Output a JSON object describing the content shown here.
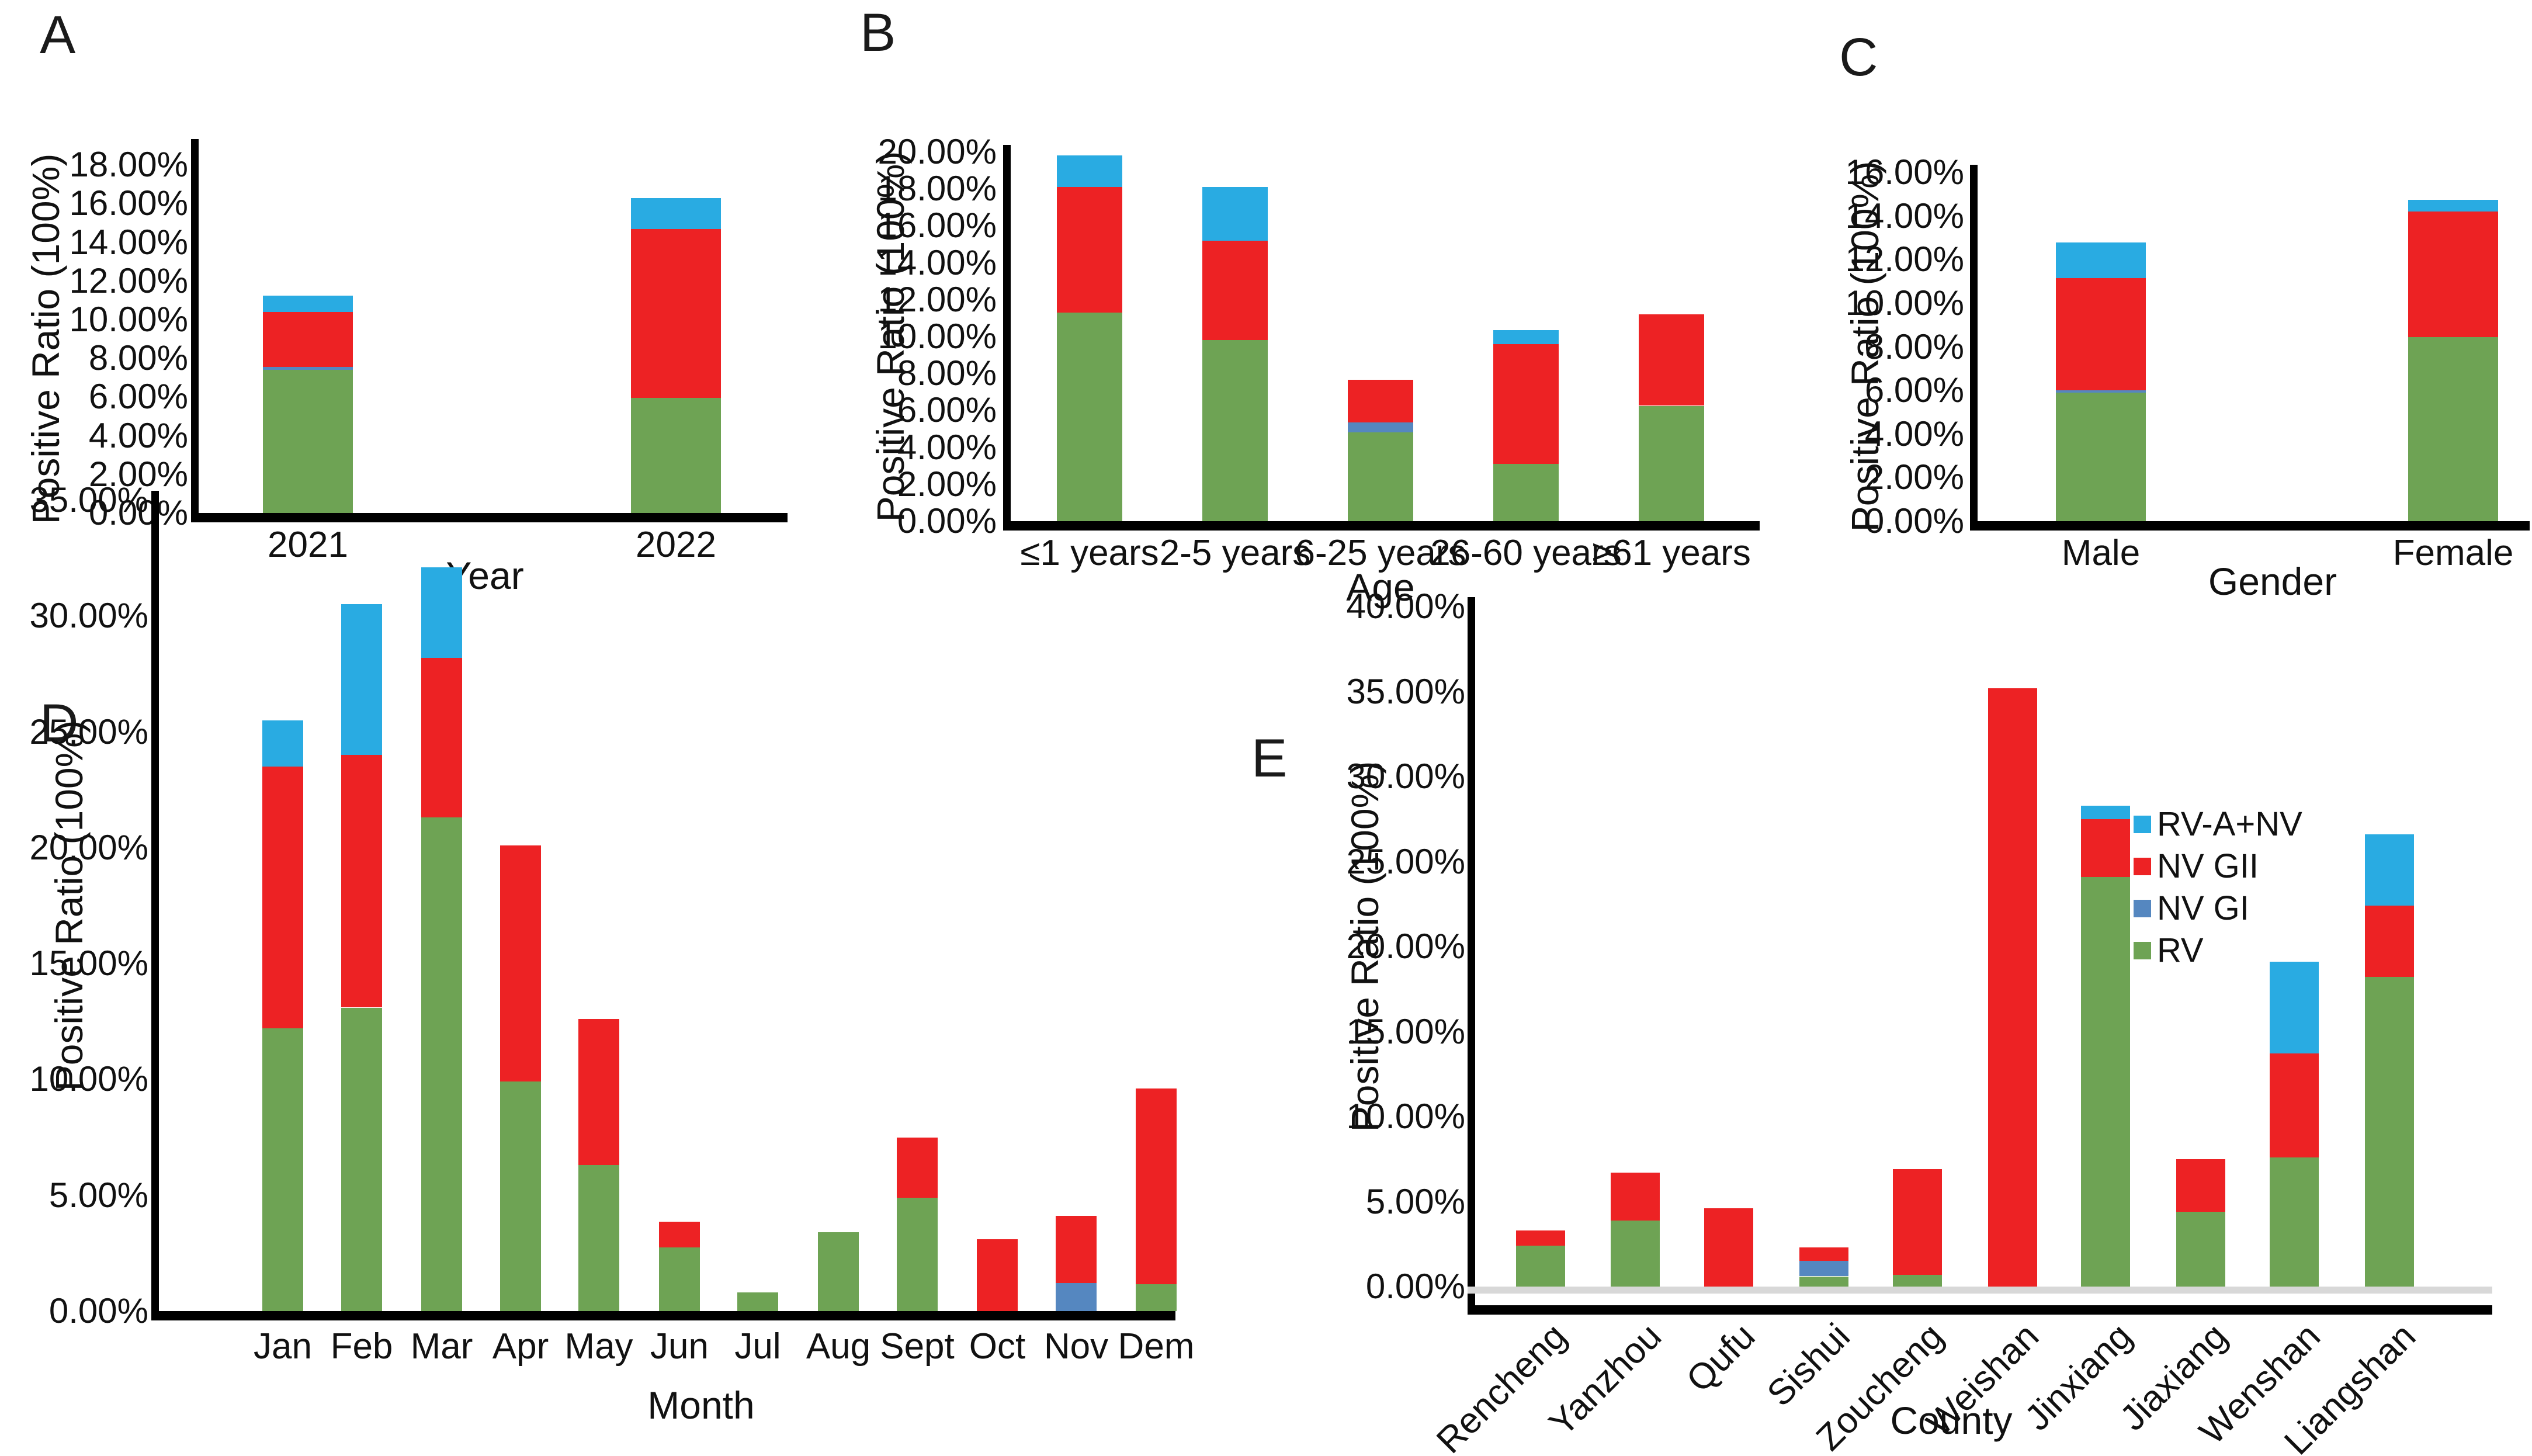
{
  "colors": {
    "RV": "#6EA354",
    "NV GI": "#5587C0",
    "NV GII": "#ED2224",
    "RV-A+NV": "#29ABE2",
    "axis": "#000000",
    "baseline_strip": "#D8D8D8"
  },
  "legend": {
    "entries": [
      {
        "label": "RV-A+NV",
        "color": "#29ABE2"
      },
      {
        "label": "NV GII",
        "color": "#ED2224"
      },
      {
        "label": "NV GI",
        "color": "#5587C0"
      },
      {
        "label": "RV",
        "color": "#6EA354"
      }
    ]
  },
  "chart_data": [
    {
      "panel": "A",
      "type": "bar",
      "stacked": true,
      "xlabel": "Year",
      "ylabel": "Positive Ratio (100%)",
      "categories": [
        "2021",
        "2022"
      ],
      "series": [
        {
          "name": "RV",
          "values": [
            7.4,
            5.95
          ]
        },
        {
          "name": "NV GI",
          "values": [
            0.15,
            0
          ]
        },
        {
          "name": "NV GII",
          "values": [
            2.85,
            8.75
          ]
        },
        {
          "name": "RV-A+NV",
          "values": [
            0.85,
            1.6
          ]
        }
      ],
      "ylim": [
        0,
        18
      ],
      "ytick_step": 2,
      "ytick_format": "percent_2dp",
      "grid": false,
      "legend_position": "none"
    },
    {
      "panel": "B",
      "type": "bar",
      "stacked": true,
      "xlabel": "Age",
      "ylabel": "Positive Ratio (100%)",
      "categories": [
        "≤1 years",
        "2-5 years",
        "6-25 years",
        "26-60 years",
        "≥61 years"
      ],
      "series": [
        {
          "name": "RV",
          "values": [
            11.3,
            9.8,
            4.8,
            3.1,
            6.25
          ]
        },
        {
          "name": "NV GI",
          "values": [
            0,
            0,
            0.55,
            0,
            0
          ]
        },
        {
          "name": "NV GII",
          "values": [
            6.8,
            5.4,
            2.3,
            6.5,
            4.95
          ]
        },
        {
          "name": "RV-A+NV",
          "values": [
            1.7,
            2.9,
            0,
            0.75,
            0
          ]
        }
      ],
      "ylim": [
        0,
        20
      ],
      "ytick_step": 2,
      "ytick_format": "percent_2dp",
      "grid": false,
      "legend_position": "none"
    },
    {
      "panel": "C",
      "type": "bar",
      "stacked": true,
      "xlabel": "Gender",
      "ylabel": "Positive Ratio (100%)",
      "categories": [
        "Male",
        "Female"
      ],
      "series": [
        {
          "name": "RV",
          "values": [
            5.9,
            8.45
          ]
        },
        {
          "name": "NV GI",
          "values": [
            0.1,
            0
          ]
        },
        {
          "name": "NV GII",
          "values": [
            5.15,
            5.75
          ]
        },
        {
          "name": "RV-A+NV",
          "values": [
            1.65,
            0.55
          ]
        }
      ],
      "ylim": [
        0,
        16
      ],
      "ytick_step": 2,
      "ytick_format": "percent_2dp",
      "grid": false,
      "legend_position": "none"
    },
    {
      "panel": "D",
      "type": "bar",
      "stacked": true,
      "xlabel": "Month",
      "ylabel": "Positive Ratio (100%)",
      "categories": [
        "Jan",
        "Feb",
        "Mar",
        "Apr",
        "May",
        "Jun",
        "Jul",
        "Aug",
        "Sept",
        "Oct",
        "Nov",
        "Dem"
      ],
      "series": [
        {
          "name": "RV",
          "values": [
            12.2,
            13.1,
            21.3,
            9.9,
            6.3,
            2.75,
            0.8,
            3.4,
            4.9,
            0,
            0,
            1.15
          ]
        },
        {
          "name": "NV GI",
          "values": [
            0,
            0,
            0,
            0,
            0,
            0,
            0,
            0,
            0,
            0,
            1.2,
            0
          ]
        },
        {
          "name": "NV GII",
          "values": [
            11.3,
            10.9,
            6.9,
            10.2,
            6.3,
            1.1,
            0,
            0,
            2.6,
            3.1,
            2.9,
            8.45
          ]
        },
        {
          "name": "RV-A+NV",
          "values": [
            2.0,
            6.5,
            3.9,
            0,
            0,
            0,
            0,
            0,
            0,
            0,
            0,
            0
          ]
        }
      ],
      "ylim": [
        0,
        35
      ],
      "ytick_step": 5,
      "ytick_format": "percent_2dp",
      "grid": false,
      "legend_position": "none"
    },
    {
      "panel": "E",
      "type": "bar",
      "stacked": true,
      "xlabel": "County",
      "ylabel": "Positive Ratio (100%)",
      "categories": [
        "Rencheng",
        "Yanzhou",
        "Qufu",
        "Sishui",
        "Zoucheng",
        "Weishan",
        "Jinxiang",
        "Jiaxiang",
        "Wenshan",
        "Liangshan"
      ],
      "series": [
        {
          "name": "RV",
          "values": [
            2.4,
            3.9,
            0,
            0.6,
            0.7,
            0,
            24.1,
            4.4,
            7.6,
            18.2
          ]
        },
        {
          "name": "NV GI",
          "values": [
            0,
            0,
            0,
            0.9,
            0,
            0,
            0,
            0,
            0,
            0
          ]
        },
        {
          "name": "NV GII",
          "values": [
            0.9,
            2.8,
            4.6,
            0.8,
            6.2,
            35.2,
            3.4,
            3.1,
            6.1,
            4.2
          ]
        },
        {
          "name": "RV-A+NV",
          "values": [
            0,
            0,
            0,
            0,
            0,
            0,
            0.8,
            0,
            5.4,
            4.2
          ]
        }
      ],
      "ylim": [
        0,
        40
      ],
      "ytick_step": 5,
      "ytick_format": "percent_2dp",
      "grid": false,
      "legend_position": "top-right",
      "x_labels_rotated_degrees": 45
    }
  ]
}
